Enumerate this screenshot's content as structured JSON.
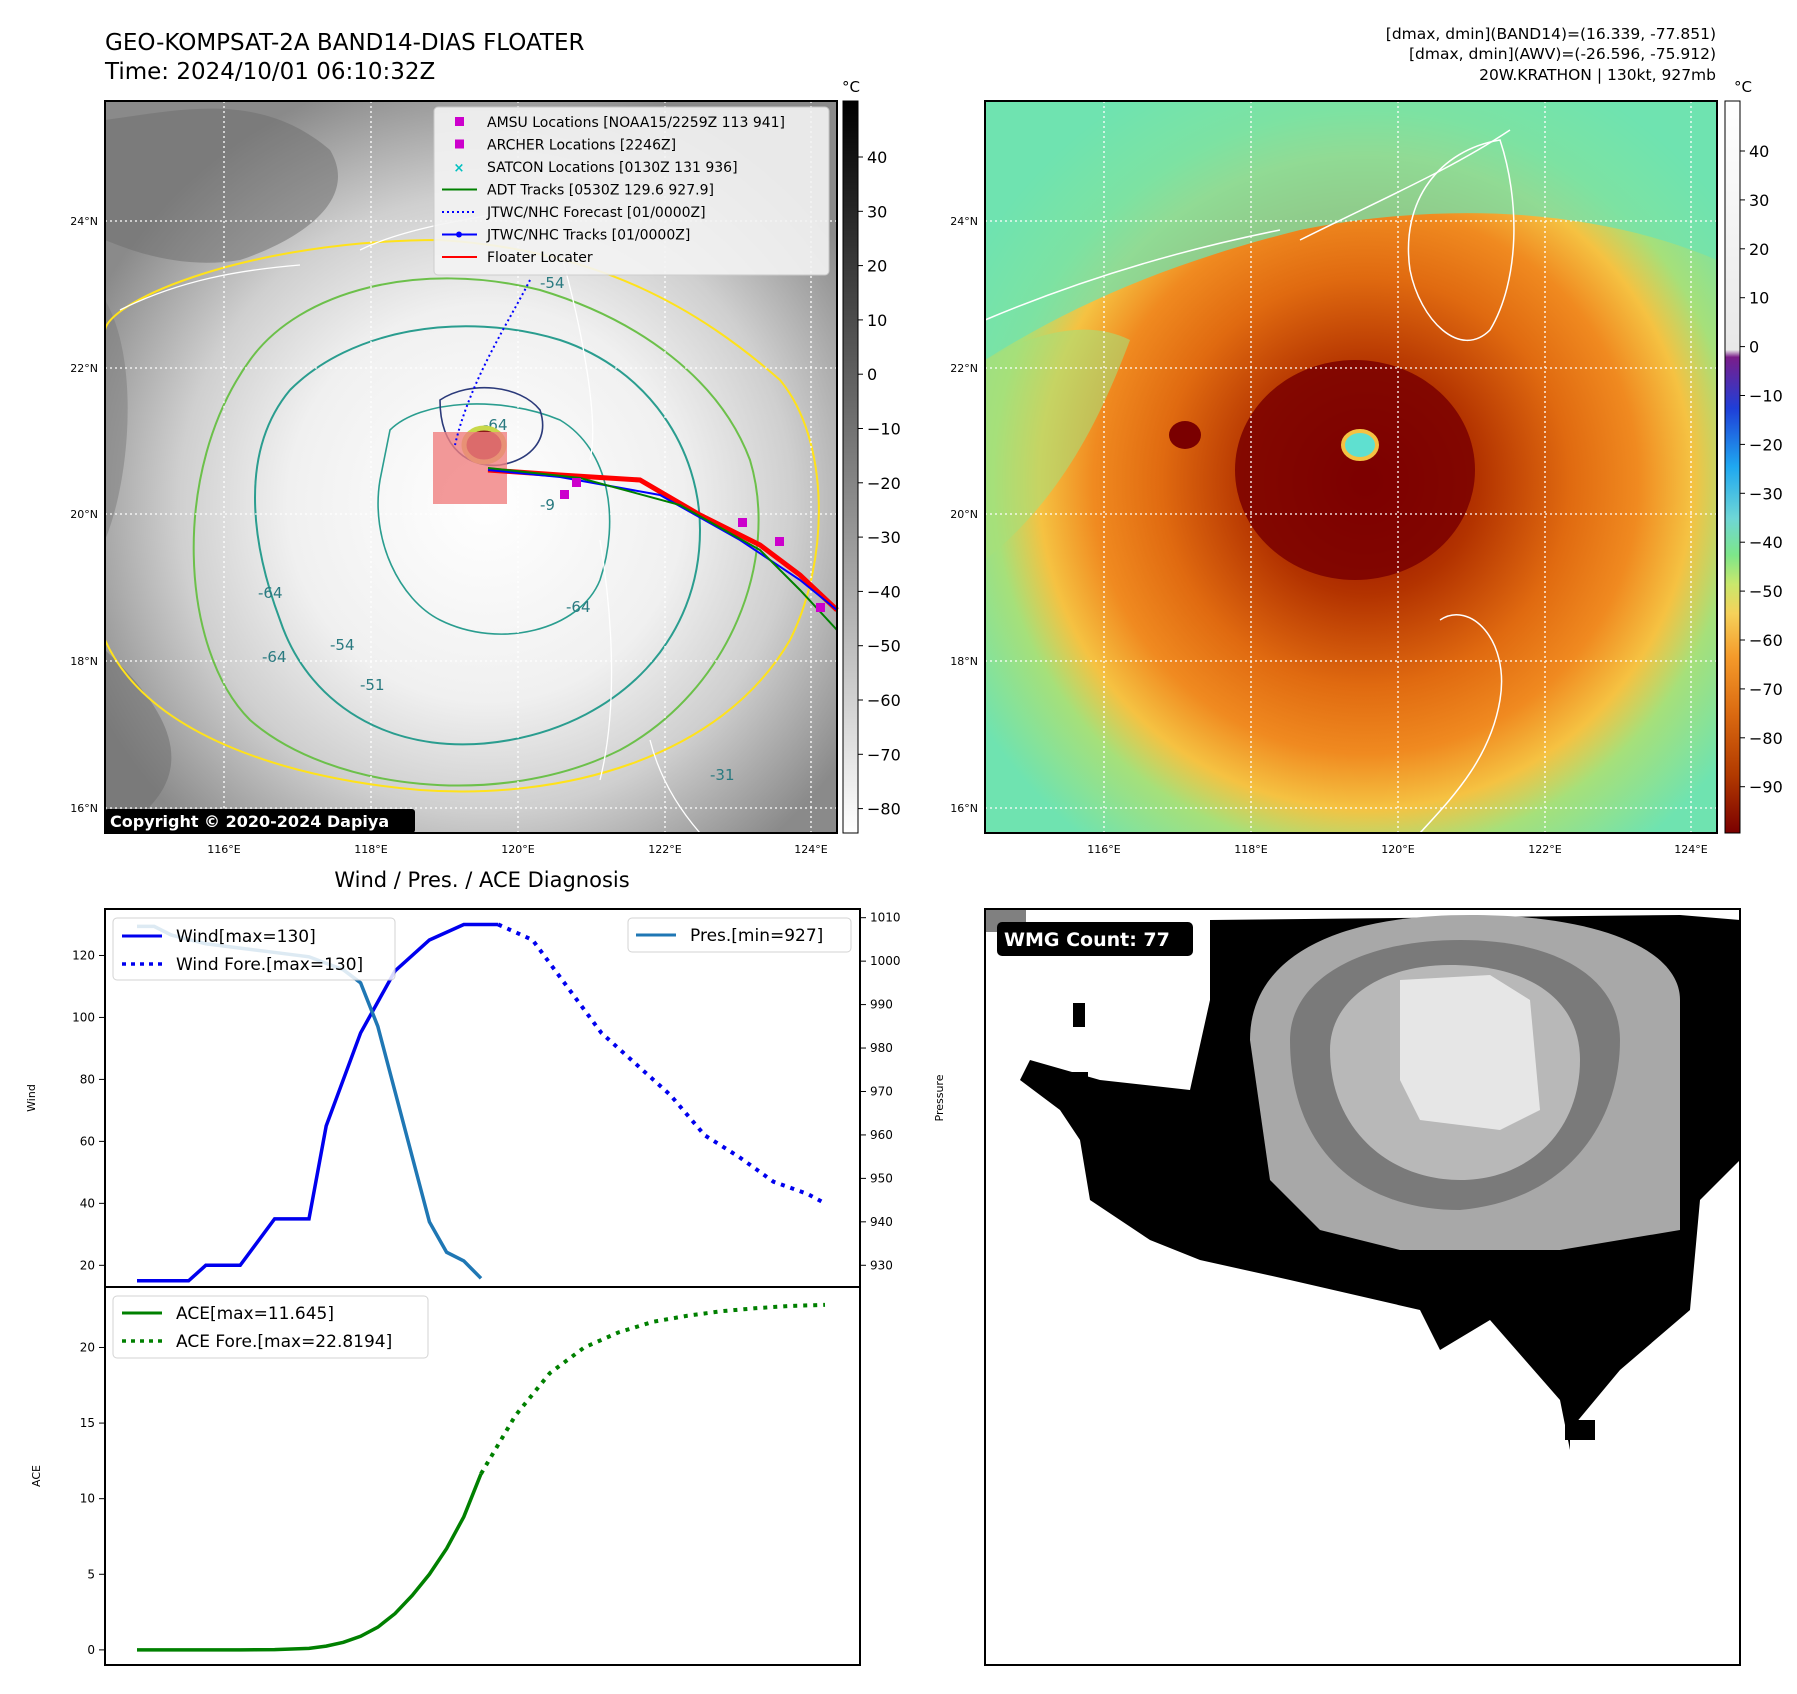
{
  "header": {
    "title_line1": "GEO-KOMPSAT-2A BAND14-DIAS FLOATER",
    "title_line2": "Time: 2024/10/01 06:10:32Z",
    "right_line1": "[dmax, dmin](BAND14)=(16.339, -77.851)",
    "right_line2": "[dmax, dmin](AWV)=(-26.596, -75.912)",
    "right_line3": "20W.KRATHON | 130kt, 927mb"
  },
  "map": {
    "lon_ticks": [
      "116°E",
      "118°E",
      "120°E",
      "122°E",
      "124°E"
    ],
    "lat_ticks": [
      "24°N",
      "22°N",
      "20°N",
      "18°N",
      "16°N"
    ],
    "copyright": "Copyright © 2020-2024 Dapiya",
    "contour_labels": [
      "-64",
      "-64",
      "-64",
      "-64",
      "-54",
      "-54",
      "-31",
      "-51",
      "-9"
    ],
    "legend": [
      {
        "label": "AMSU Locations [NOAA15/2259Z 113 941]",
        "color": "#cc00cc",
        "marker": "square"
      },
      {
        "label": "ARCHER Locations [2246Z]",
        "color": "#cc00cc",
        "marker": "square"
      },
      {
        "label": "SATCON Locations [0130Z 131 936]",
        "color": "#00c0c0",
        "marker": "x"
      },
      {
        "label": "ADT Tracks [0530Z 129.6 927.9]",
        "color": "#008000",
        "marker": "line"
      },
      {
        "label": "JTWC/NHC Forecast [01/0000Z]",
        "color": "#0000ff",
        "marker": "dotted"
      },
      {
        "label": "JTWC/NHC Tracks [01/0000Z]",
        "color": "#0000ff",
        "marker": "dotline"
      },
      {
        "label": "Floater Locater",
        "color": "#ff0000",
        "marker": "line"
      }
    ],
    "colorbar_gray": {
      "unit": "°C",
      "ticks": [
        "40",
        "30",
        "20",
        "10",
        "0",
        "−10",
        "−20",
        "−30",
        "−40",
        "−50",
        "−60",
        "−70",
        "−80"
      ]
    },
    "colorbar_color": {
      "unit": "°C",
      "ticks": [
        "40",
        "30",
        "20",
        "10",
        "0",
        "−10",
        "−20",
        "−30",
        "−40",
        "−50",
        "−60",
        "−70",
        "−80",
        "−90"
      ]
    }
  },
  "diagnosis": {
    "title": "Wind / Pres. / ACE Diagnosis",
    "wind_ylabel": "Wind",
    "pres_ylabel": "Pressure",
    "ace_ylabel": "ACE",
    "legend_wind": "Wind[max=130]",
    "legend_wind_fore": "Wind Fore.[max=130]",
    "legend_pres": "Pres.[min=927]",
    "legend_ace": "ACE[max=11.645]",
    "legend_ace_fore": "ACE Fore.[max=22.8194]"
  },
  "wmg": {
    "label": "WMG Count: 77"
  },
  "colors": {
    "wind": "#0000ee",
    "pressure": "#1f77b4",
    "ace": "#008000"
  },
  "chart_data": [
    {
      "type": "line",
      "title": "Wind / Pres. / ACE Diagnosis",
      "ylabel": "Wind",
      "y2label": "Pressure",
      "ylim": [
        13,
        135
      ],
      "y2lim": [
        925,
        1012
      ],
      "series": [
        {
          "name": "Wind[max=130]",
          "axis": "left",
          "style": "solid",
          "x": [
            0,
            3,
            4,
            6,
            8,
            10,
            11,
            13,
            15,
            17,
            19,
            20,
            21
          ],
          "values": [
            15,
            15,
            20,
            20,
            35,
            35,
            65,
            95,
            115,
            125,
            130,
            130,
            130
          ]
        },
        {
          "name": "Wind Fore.[max=130]",
          "axis": "left",
          "style": "dotted",
          "x": [
            21,
            23,
            25,
            27,
            29,
            31,
            33,
            35,
            37,
            39,
            40
          ],
          "values": [
            130,
            125,
            110,
            95,
            85,
            75,
            62,
            55,
            47,
            43,
            40
          ]
        },
        {
          "name": "Pres.[min=927]",
          "axis": "right",
          "style": "solid",
          "x": [
            0,
            1,
            2,
            4,
            6,
            8,
            10,
            12,
            13,
            14,
            15,
            16,
            17,
            18,
            19,
            20
          ],
          "values": [
            1008,
            1008,
            1006,
            1004,
            1003,
            1002,
            1001,
            998,
            995,
            985,
            970,
            955,
            940,
            933,
            931,
            927
          ]
        }
      ]
    },
    {
      "type": "line",
      "ylabel": "ACE",
      "ylim": [
        -1,
        24
      ],
      "series": [
        {
          "name": "ACE[max=11.645]",
          "style": "solid",
          "x": [
            0,
            2,
            4,
            6,
            8,
            10,
            11,
            12,
            13,
            14,
            15,
            16,
            17,
            18,
            19,
            20
          ],
          "values": [
            0,
            0,
            0,
            0,
            0.02,
            0.1,
            0.25,
            0.5,
            0.9,
            1.5,
            2.4,
            3.6,
            5.0,
            6.7,
            8.8,
            11.645
          ]
        },
        {
          "name": "ACE Fore.[max=22.8194]",
          "style": "dotted",
          "x": [
            20,
            22,
            24,
            26,
            28,
            30,
            32,
            34,
            36,
            38,
            40
          ],
          "values": [
            11.645,
            15.5,
            18.3,
            20.0,
            21.0,
            21.7,
            22.1,
            22.4,
            22.6,
            22.75,
            22.8194
          ]
        }
      ]
    }
  ]
}
